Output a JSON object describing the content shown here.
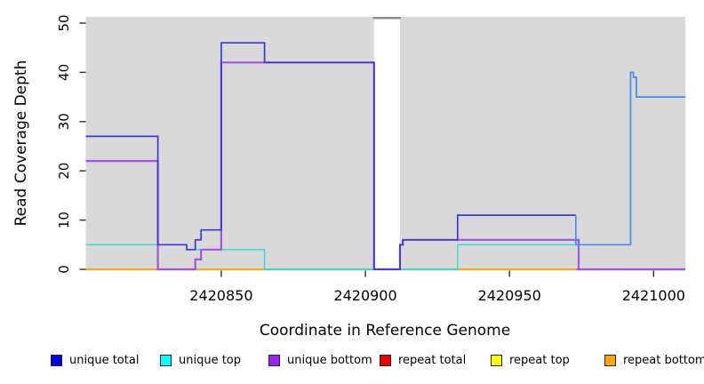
{
  "chart_data": {
    "type": "line",
    "subtype": "step-coverage",
    "title": "",
    "xlabel": "Coordinate in Reference Genome",
    "ylabel": "Read Coverage Depth",
    "xlim": [
      2420803,
      2421011
    ],
    "ylim": [
      0,
      51
    ],
    "x_ticks": [
      2420850,
      2420900,
      2420950,
      2421000
    ],
    "y_ticks": [
      0,
      10,
      20,
      30,
      40,
      50
    ],
    "grid": false,
    "plot_background": "#d9d9d9",
    "masked_region": {
      "x_start": 2420903,
      "x_end": 2420912,
      "fill": "#ffffff",
      "cap_color": "#8a8a8a"
    },
    "series": [
      {
        "name": "repeat total",
        "layer": 1,
        "color": "#ee0000",
        "width": 1.2,
        "breakpoints": [
          2420803,
          2421011
        ],
        "values": [
          0
        ]
      },
      {
        "name": "repeat top",
        "layer": 2,
        "color": "#ffff00",
        "width": 1.2,
        "breakpoints": [
          2420803,
          2421011
        ],
        "values": [
          0
        ]
      },
      {
        "name": "repeat bottom",
        "layer": 3,
        "color": "#ffa500",
        "width": 1.8,
        "breakpoints": [
          2420803,
          2421011
        ],
        "values": [
          0
        ]
      },
      {
        "name": "unique top",
        "layer": 5,
        "color": "#2adddd",
        "width": 1.4,
        "breakpoints": [
          2420803,
          2420838,
          2420865,
          2420932,
          2420992,
          2420993,
          2420994,
          2421011
        ],
        "values": [
          5,
          4,
          0,
          5,
          40,
          39,
          35
        ]
      },
      {
        "name": "unique bottom",
        "layer": 6,
        "color": "#a055e0",
        "width": 2.2,
        "breakpoints": [
          2420803,
          2420828,
          2420841,
          2420843,
          2420850,
          2420903,
          2420912,
          2420913,
          2420974,
          2421011
        ],
        "values": [
          22,
          0,
          2,
          4,
          42,
          0,
          5,
          6,
          0
        ]
      },
      {
        "name": "unique total",
        "layer": 7,
        "color": "#3838dd",
        "width": 1.7,
        "split": {
          "at": 2420973,
          "color2": "#4a8cec"
        },
        "breakpoints": [
          2420803,
          2420828,
          2420838,
          2420841,
          2420843,
          2420850,
          2420865,
          2420903,
          2420912,
          2420913,
          2420932,
          2420973,
          2420992,
          2420993,
          2420994,
          2421011
        ],
        "values": [
          27,
          5,
          4,
          6,
          8,
          46,
          42,
          0,
          5,
          6,
          11,
          5,
          40,
          39,
          35
        ]
      }
    ],
    "zero_line_blend_segments": [
      {
        "from": 2420828,
        "to": 2420841,
        "color": "#ee7fbe"
      },
      {
        "from": 2420865,
        "to": 2420903,
        "color": "#76cc84"
      },
      {
        "from": 2420912,
        "to": 2420932,
        "color": "#76cc84"
      },
      {
        "from": 2420973,
        "to": 2421011,
        "color": "#ec5c95"
      }
    ],
    "legend": {
      "position": "bottom",
      "items": [
        {
          "label": "unique total",
          "color": "#0000ee"
        },
        {
          "label": "unique top",
          "color": "#00ffff"
        },
        {
          "label": "unique bottom",
          "color": "#a020f0"
        },
        {
          "label": "repeat total",
          "color": "#ee0000"
        },
        {
          "label": "repeat top",
          "color": "#ffff00"
        },
        {
          "label": "repeat bottom",
          "color": "#ffa500"
        }
      ]
    }
  }
}
